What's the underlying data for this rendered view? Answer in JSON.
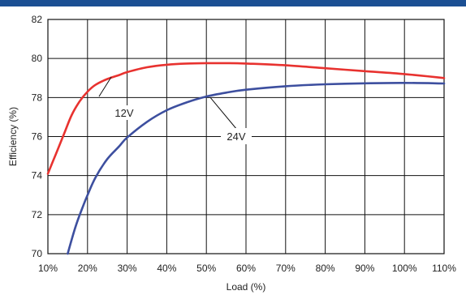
{
  "chart_data": {
    "type": "line",
    "title": "",
    "xlabel": "Load (%)",
    "ylabel": "Efficiency (%)",
    "xlim": [
      10,
      110
    ],
    "ylim": [
      70,
      82
    ],
    "x_ticks": [
      10,
      20,
      30,
      40,
      50,
      60,
      70,
      80,
      90,
      100,
      110
    ],
    "x_tick_labels": [
      "10%",
      "20%",
      "30%",
      "40%",
      "50%",
      "60%",
      "70%",
      "80%",
      "90%",
      "100%",
      "110%"
    ],
    "y_ticks": [
      70,
      72,
      74,
      76,
      78,
      80,
      82
    ],
    "y_tick_labels": [
      "70",
      "72",
      "74",
      "76",
      "78",
      "80",
      "82"
    ],
    "grid": true,
    "legend": "none",
    "series": [
      {
        "name": "12V",
        "color": "#e8322f",
        "x": [
          10,
          12,
          14,
          16,
          18,
          20,
          22,
          25,
          28,
          30,
          35,
          40,
          45,
          50,
          55,
          60,
          70,
          80,
          90,
          100,
          110
        ],
        "y": [
          74.1,
          75.1,
          76.1,
          77.1,
          77.8,
          78.3,
          78.65,
          78.95,
          79.15,
          79.3,
          79.55,
          79.68,
          79.74,
          79.76,
          79.76,
          79.74,
          79.65,
          79.5,
          79.35,
          79.2,
          79.0
        ]
      },
      {
        "name": "24V",
        "color": "#3d4f9f",
        "x": [
          15,
          17,
          19,
          20,
          22,
          25,
          28,
          30,
          35,
          40,
          45,
          50,
          55,
          60,
          70,
          80,
          90,
          100,
          110
        ],
        "y": [
          70.0,
          71.4,
          72.5,
          73.0,
          73.9,
          74.85,
          75.5,
          75.95,
          76.75,
          77.35,
          77.75,
          78.05,
          78.25,
          78.4,
          78.58,
          78.68,
          78.73,
          78.75,
          78.72
        ]
      }
    ],
    "annotations": [
      {
        "text": "12V",
        "series": "12V",
        "point": [
          26,
          79.05
        ]
      },
      {
        "text": "24V",
        "series": "24V",
        "point": [
          51,
          78.0
        ]
      }
    ]
  }
}
